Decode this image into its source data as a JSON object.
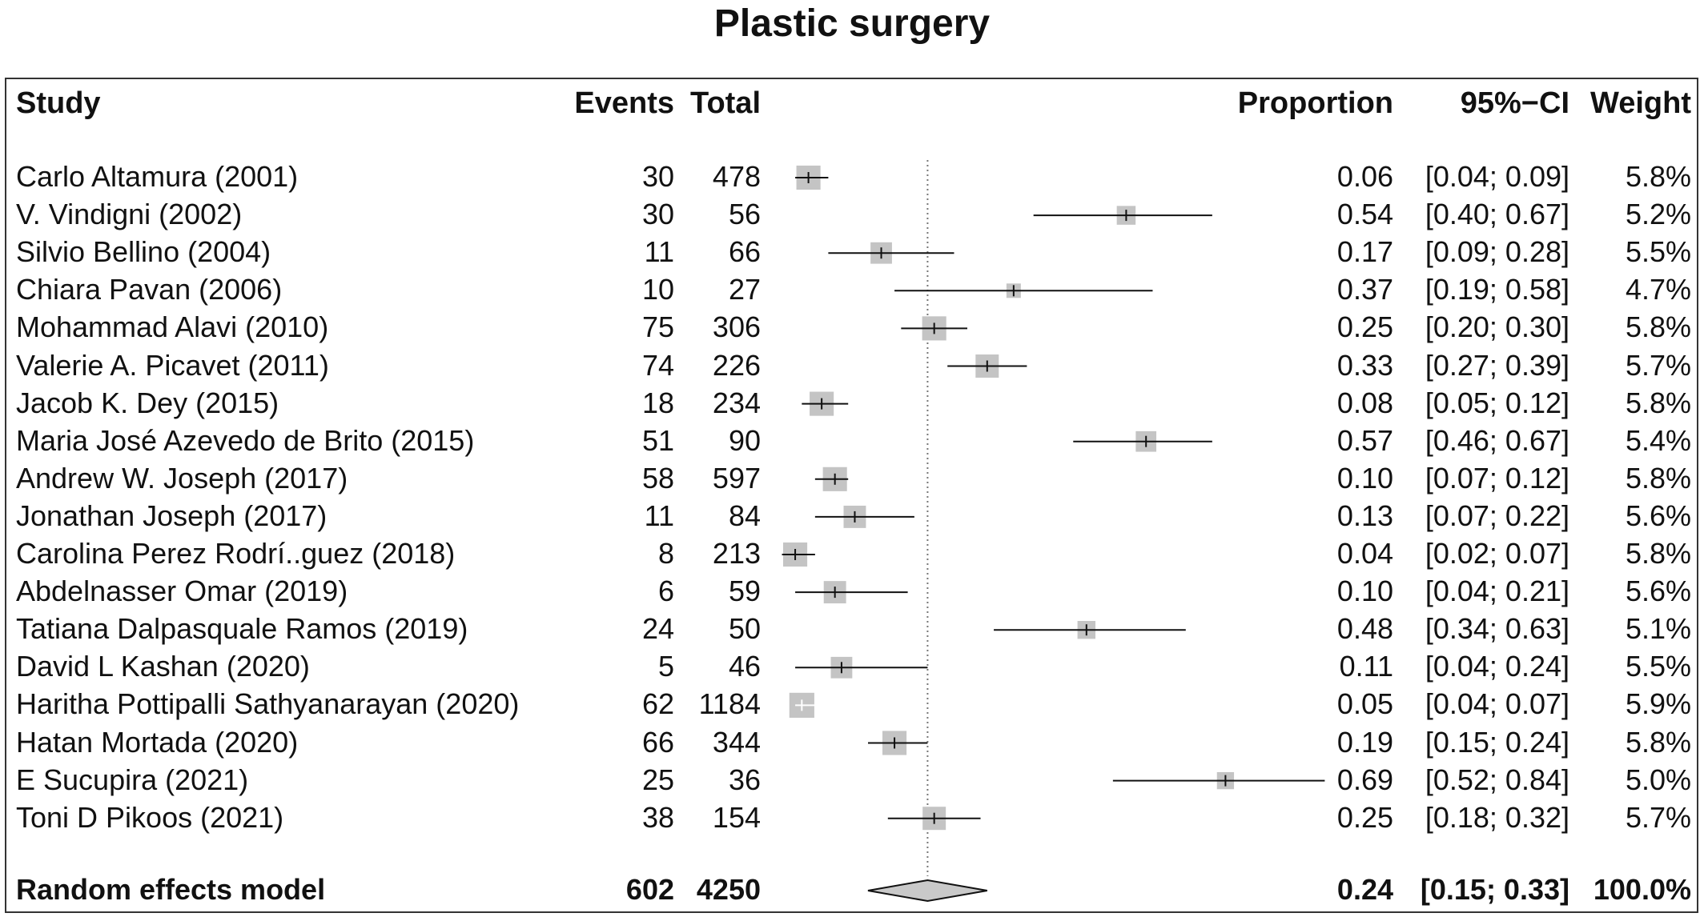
{
  "title": "Plastic surgery",
  "headers": {
    "study": "Study",
    "events": "Events",
    "total": "Total",
    "proportion": "Proportion",
    "ci": "95%−CI",
    "weight": "Weight"
  },
  "chart_data": {
    "type": "forest",
    "title": "Plastic surgery",
    "xlim": [
      0,
      0.75
    ],
    "reference_line": 0.24,
    "studies": [
      {
        "study": "Carlo Altamura (2001)",
        "events": "30",
        "total": "478",
        "proportion": 0.06,
        "ci_low": 0.04,
        "ci_high": 0.09,
        "proportion_text": "0.06",
        "ci_text": "[0.04; 0.09]",
        "weight": "5.8%"
      },
      {
        "study": "V. Vindigni (2002)",
        "events": "30",
        "total": "56",
        "proportion": 0.54,
        "ci_low": 0.4,
        "ci_high": 0.67,
        "proportion_text": "0.54",
        "ci_text": "[0.40; 0.67]",
        "weight": "5.2%"
      },
      {
        "study": "Silvio Bellino (2004)",
        "events": "11",
        "total": "66",
        "proportion": 0.17,
        "ci_low": 0.09,
        "ci_high": 0.28,
        "proportion_text": "0.17",
        "ci_text": "[0.09; 0.28]",
        "weight": "5.5%"
      },
      {
        "study": "Chiara Pavan (2006)",
        "events": "10",
        "total": "27",
        "proportion": 0.37,
        "ci_low": 0.19,
        "ci_high": 0.58,
        "proportion_text": "0.37",
        "ci_text": "[0.19; 0.58]",
        "weight": "4.7%"
      },
      {
        "study": "Mohammad Alavi (2010)",
        "events": "75",
        "total": "306",
        "proportion": 0.25,
        "ci_low": 0.2,
        "ci_high": 0.3,
        "proportion_text": "0.25",
        "ci_text": "[0.20; 0.30]",
        "weight": "5.8%"
      },
      {
        "study": "Valerie A. Picavet (2011)",
        "events": "74",
        "total": "226",
        "proportion": 0.33,
        "ci_low": 0.27,
        "ci_high": 0.39,
        "proportion_text": "0.33",
        "ci_text": "[0.27; 0.39]",
        "weight": "5.7%"
      },
      {
        "study": "Jacob K. Dey (2015)",
        "events": "18",
        "total": "234",
        "proportion": 0.08,
        "ci_low": 0.05,
        "ci_high": 0.12,
        "proportion_text": "0.08",
        "ci_text": "[0.05; 0.12]",
        "weight": "5.8%"
      },
      {
        "study": "Maria José Azevedo de Brito (2015)",
        "events": "51",
        "total": "90",
        "proportion": 0.57,
        "ci_low": 0.46,
        "ci_high": 0.67,
        "proportion_text": "0.57",
        "ci_text": "[0.46; 0.67]",
        "weight": "5.4%"
      },
      {
        "study": "Andrew W. Joseph (2017)",
        "events": "58",
        "total": "597",
        "proportion": 0.1,
        "ci_low": 0.07,
        "ci_high": 0.12,
        "proportion_text": "0.10",
        "ci_text": "[0.07; 0.12]",
        "weight": "5.8%"
      },
      {
        "study": "Jonathan Joseph (2017)",
        "events": "11",
        "total": "84",
        "proportion": 0.13,
        "ci_low": 0.07,
        "ci_high": 0.22,
        "proportion_text": "0.13",
        "ci_text": "[0.07; 0.22]",
        "weight": "5.6%"
      },
      {
        "study": "Carolina Perez Rodrí..guez (2018)",
        "events": "8",
        "total": "213",
        "proportion": 0.04,
        "ci_low": 0.02,
        "ci_high": 0.07,
        "proportion_text": "0.04",
        "ci_text": "[0.02; 0.07]",
        "weight": "5.8%"
      },
      {
        "study": "Abdelnasser Omar (2019)",
        "events": "6",
        "total": "59",
        "proportion": 0.1,
        "ci_low": 0.04,
        "ci_high": 0.21,
        "proportion_text": "0.10",
        "ci_text": "[0.04; 0.21]",
        "weight": "5.6%"
      },
      {
        "study": "Tatiana Dalpasquale Ramos (2019)",
        "events": "24",
        "total": "50",
        "proportion": 0.48,
        "ci_low": 0.34,
        "ci_high": 0.63,
        "proportion_text": "0.48",
        "ci_text": "[0.34; 0.63]",
        "weight": "5.1%"
      },
      {
        "study": "David L Kashan (2020)",
        "events": "5",
        "total": "46",
        "proportion": 0.11,
        "ci_low": 0.04,
        "ci_high": 0.24,
        "proportion_text": "0.11",
        "ci_text": "[0.04; 0.24]",
        "weight": "5.5%"
      },
      {
        "study": "Haritha Pottipalli Sathyanarayan (2020)",
        "events": "62",
        "total": "1184",
        "proportion": 0.05,
        "ci_low": 0.04,
        "ci_high": 0.07,
        "proportion_text": "0.05",
        "ci_text": "[0.04; 0.07]",
        "weight": "5.9%"
      },
      {
        "study": "Hatan Mortada (2020)",
        "events": "66",
        "total": "344",
        "proportion": 0.19,
        "ci_low": 0.15,
        "ci_high": 0.24,
        "proportion_text": "0.19",
        "ci_text": "[0.15; 0.24]",
        "weight": "5.8%"
      },
      {
        "study": "E Sucupira (2021)",
        "events": "25",
        "total": "36",
        "proportion": 0.69,
        "ci_low": 0.52,
        "ci_high": 0.84,
        "proportion_text": "0.69",
        "ci_text": "[0.52; 0.84]",
        "weight": "5.0%"
      },
      {
        "study": "Toni D Pikoos (2021)",
        "events": "38",
        "total": "154",
        "proportion": 0.25,
        "ci_low": 0.18,
        "ci_high": 0.32,
        "proportion_text": "0.25",
        "ci_text": "[0.18; 0.32]",
        "weight": "5.7%"
      }
    ],
    "pooled": {
      "label": "Random effects model",
      "events": "602",
      "total": "4250",
      "proportion": 0.24,
      "ci_low": 0.15,
      "ci_high": 0.33,
      "proportion_text": "0.24",
      "ci_text": "[0.15; 0.33]",
      "weight": "100.0%"
    },
    "colors": {
      "box": "#c4c4c4",
      "line": "#111111",
      "diamond": "#c9c9c9",
      "reference": "#777777"
    }
  }
}
